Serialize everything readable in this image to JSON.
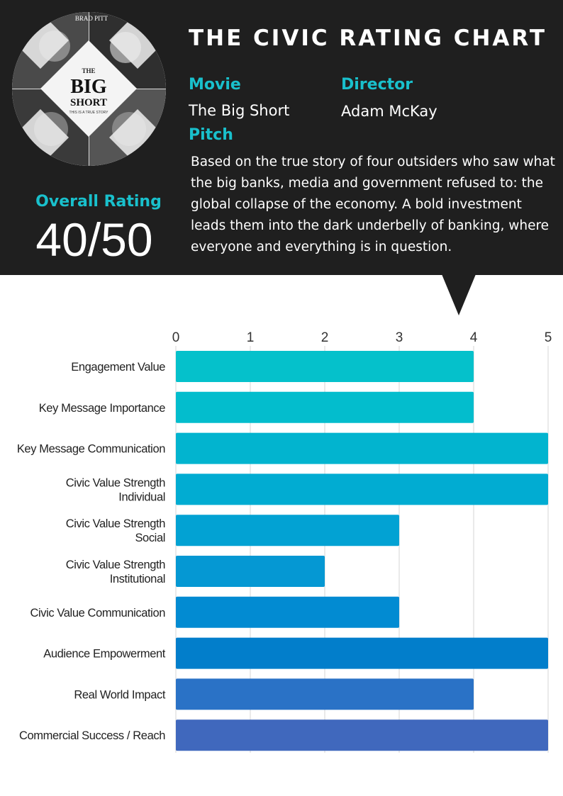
{
  "header": {
    "title": "THE CIVIC RATING CHART",
    "movie_label": "Movie",
    "movie": "The Big Short",
    "director_label": "Director",
    "director": "Adam McKay",
    "pitch_label": "Pitch",
    "pitch": "Based on the true story of four outsiders who saw what the big banks, media and government refused to: the global collapse of the economy. A bold investment leads them into the dark underbelly of banking, where everyone and everything is in question.",
    "overall_label": "Overall Rating",
    "overall_value": "40/50"
  },
  "poster": {
    "top_text": "BRAD PITT",
    "title_line1": "THE",
    "title_line2": "BIG",
    "title_line3": "SHORT",
    "tagline": "THIS IS A TRUE STORY"
  },
  "colors": {
    "header_bg": "#1f1f1f",
    "accent": "#19c0cc",
    "grid": "#d4d4d4",
    "bars": [
      "#05c1cb",
      "#03bdcd",
      "#02b4cf",
      "#01acd2",
      "#02a2d3",
      "#0598d3",
      "#028bd2",
      "#027ecb",
      "#2a72c6",
      "#4068bd"
    ]
  },
  "chart_data": {
    "type": "bar",
    "orientation": "horizontal",
    "categories": [
      "Engagement Value",
      "Key Message Importance",
      "Key Message Communication",
      "Civic Value Strength Individual",
      "Civic Value Strength Social",
      "Civic Value Strength Institutional",
      "Civic Value Communication",
      "Audience Empowerment",
      "Real World Impact",
      "Commercial Success / Reach"
    ],
    "category_lines": [
      [
        "Engagement Value"
      ],
      [
        "Key Message Importance"
      ],
      [
        "Key Message Communication"
      ],
      [
        "Civic Value Strength",
        "Individual"
      ],
      [
        "Civic Value Strength",
        "Social"
      ],
      [
        "Civic Value Strength",
        "Institutional"
      ],
      [
        "Civic Value Communication"
      ],
      [
        "Audience Empowerment"
      ],
      [
        "Real World Impact"
      ],
      [
        "Commercial Success / Reach"
      ]
    ],
    "values": [
      4,
      4,
      5,
      5,
      3,
      2,
      3,
      5,
      4,
      5
    ],
    "xlim": [
      0,
      5
    ],
    "ticks": [
      0,
      1,
      2,
      3,
      4,
      5
    ],
    "tick_labels": [
      "0",
      "1",
      "2",
      "3",
      "4",
      "5"
    ],
    "axis_position": "top",
    "grid": true,
    "legend": "none"
  }
}
